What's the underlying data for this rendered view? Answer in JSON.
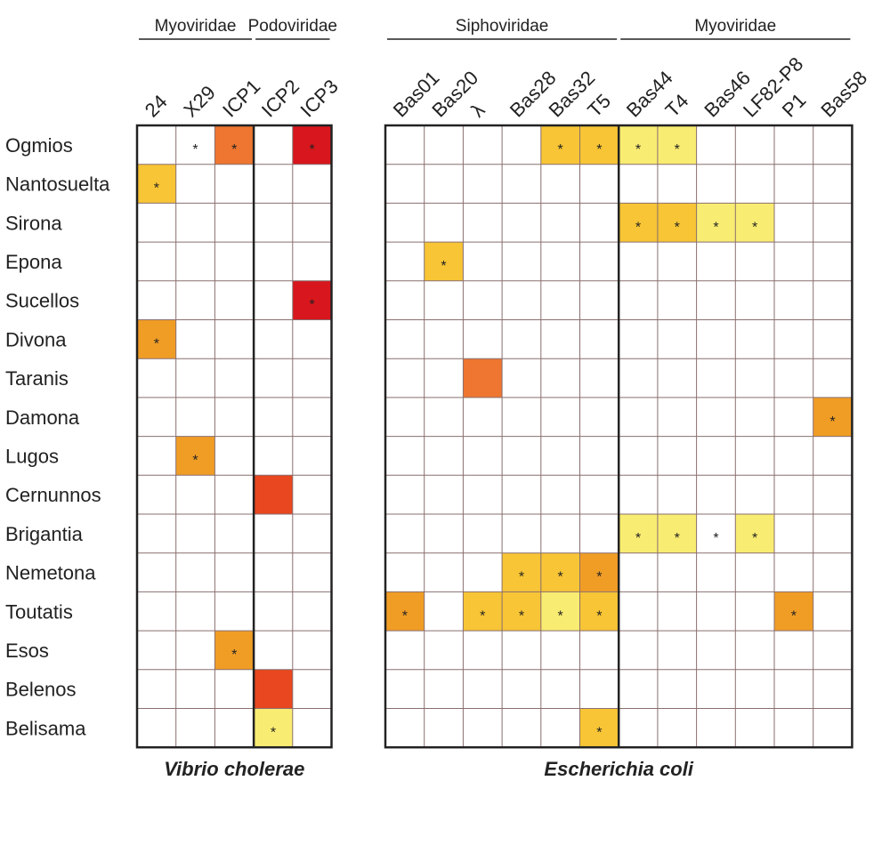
{
  "chart_data": {
    "type": "heatmap",
    "rows": [
      "Ogmios",
      "Nantosuelta",
      "Sirona",
      "Epona",
      "Sucellos",
      "Divona",
      "Taranis",
      "Damona",
      "Lugos",
      "Cernunnos",
      "Brigantia",
      "Nemetona",
      "Toutatis",
      "Esos",
      "Belenos",
      "Belisama"
    ],
    "colors": {
      "1": "#f9ec72",
      "2": "#f7c535",
      "3": "#f09d26",
      "4": "#ee7630",
      "5": "#e8471f",
      "6": "#d8161d",
      "empty": "#ffffff",
      "grid": "#8a6f6f",
      "frame": "#222222"
    },
    "panels": [
      {
        "organism": "Vibrio cholerae",
        "columns": [
          "24",
          "X29",
          "ICP1",
          "ICP2",
          "ICP3"
        ],
        "families": [
          {
            "name": "Myoviridae",
            "start": 0,
            "end": 2
          },
          {
            "name": "Podoviridae",
            "start": 3,
            "end": 4
          }
        ],
        "dividers_after": [
          2
        ],
        "cells": [
          {
            "row": 0,
            "col": 1,
            "level": 0,
            "star": true
          },
          {
            "row": 0,
            "col": 2,
            "level": 4,
            "star": true
          },
          {
            "row": 0,
            "col": 4,
            "level": 6,
            "star": true
          },
          {
            "row": 1,
            "col": 0,
            "level": 2,
            "star": true
          },
          {
            "row": 4,
            "col": 4,
            "level": 6,
            "star": true
          },
          {
            "row": 5,
            "col": 0,
            "level": 3,
            "star": true
          },
          {
            "row": 8,
            "col": 1,
            "level": 3,
            "star": true
          },
          {
            "row": 9,
            "col": 3,
            "level": 5,
            "star": false
          },
          {
            "row": 13,
            "col": 2,
            "level": 3,
            "star": true
          },
          {
            "row": 14,
            "col": 3,
            "level": 5,
            "star": false
          },
          {
            "row": 15,
            "col": 3,
            "level": 1,
            "star": true
          }
        ]
      },
      {
        "organism": "Escherichia coli",
        "columns": [
          "Bas01",
          "Bas20",
          "λ",
          "Bas28",
          "Bas32",
          "T5",
          "Bas44",
          "T4",
          "Bas46",
          "LF82-P8",
          "P1",
          "Bas58"
        ],
        "families": [
          {
            "name": "Siphoviridae",
            "start": 0,
            "end": 5
          },
          {
            "name": "Myoviridae",
            "start": 6,
            "end": 11
          }
        ],
        "dividers_after": [
          5
        ],
        "cells": [
          {
            "row": 0,
            "col": 4,
            "level": 2,
            "star": true
          },
          {
            "row": 0,
            "col": 5,
            "level": 2,
            "star": true
          },
          {
            "row": 0,
            "col": 6,
            "level": 1,
            "star": true
          },
          {
            "row": 0,
            "col": 7,
            "level": 1,
            "star": true
          },
          {
            "row": 2,
            "col": 6,
            "level": 2,
            "star": true
          },
          {
            "row": 2,
            "col": 7,
            "level": 2,
            "star": true
          },
          {
            "row": 2,
            "col": 8,
            "level": 1,
            "star": true
          },
          {
            "row": 2,
            "col": 9,
            "level": 1,
            "star": true
          },
          {
            "row": 3,
            "col": 1,
            "level": 2,
            "star": true
          },
          {
            "row": 6,
            "col": 2,
            "level": 4,
            "star": false
          },
          {
            "row": 7,
            "col": 11,
            "level": 3,
            "star": true
          },
          {
            "row": 10,
            "col": 6,
            "level": 1,
            "star": true
          },
          {
            "row": 10,
            "col": 7,
            "level": 1,
            "star": true
          },
          {
            "row": 10,
            "col": 8,
            "level": 0,
            "star": true
          },
          {
            "row": 10,
            "col": 9,
            "level": 1,
            "star": true
          },
          {
            "row": 11,
            "col": 3,
            "level": 2,
            "star": true
          },
          {
            "row": 11,
            "col": 4,
            "level": 2,
            "star": true
          },
          {
            "row": 11,
            "col": 5,
            "level": 3,
            "star": true
          },
          {
            "row": 12,
            "col": 0,
            "level": 3,
            "star": true
          },
          {
            "row": 12,
            "col": 2,
            "level": 2,
            "star": true
          },
          {
            "row": 12,
            "col": 3,
            "level": 2,
            "star": true
          },
          {
            "row": 12,
            "col": 4,
            "level": 1,
            "star": true
          },
          {
            "row": 12,
            "col": 5,
            "level": 2,
            "star": true
          },
          {
            "row": 12,
            "col": 10,
            "level": 3,
            "star": true
          },
          {
            "row": 15,
            "col": 5,
            "level": 2,
            "star": true
          }
        ]
      }
    ],
    "star_symbol": "*"
  }
}
